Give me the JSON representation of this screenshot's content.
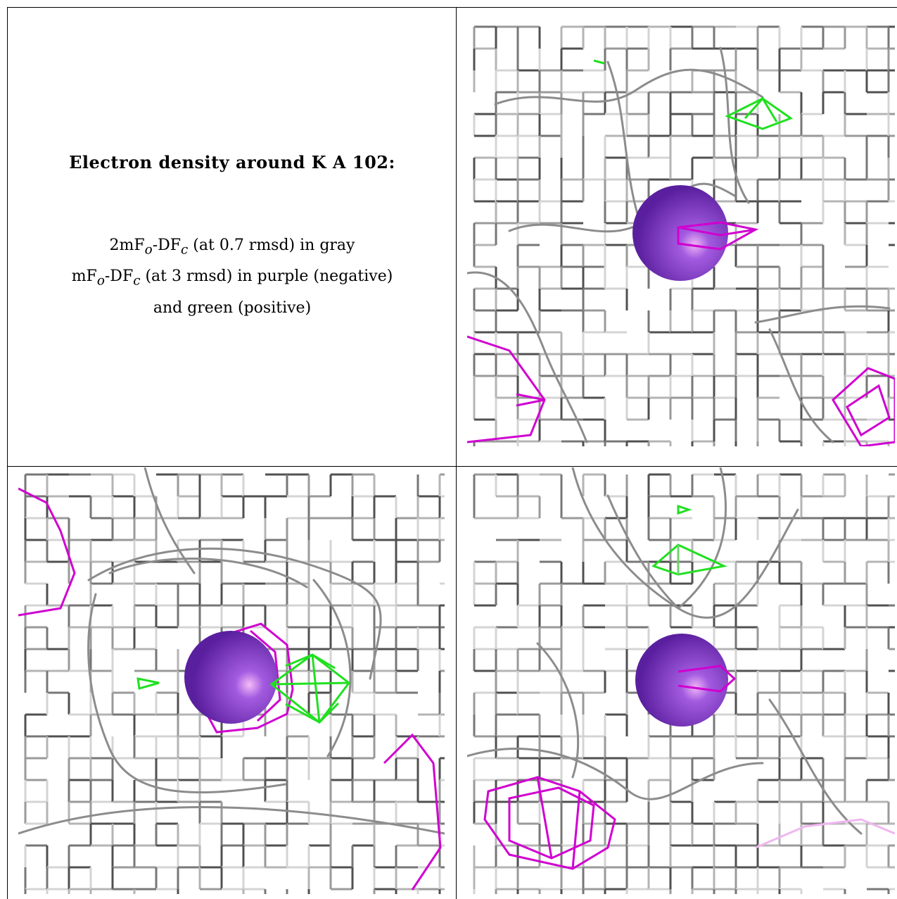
{
  "caption": {
    "title": "Electron density around K A 102:",
    "line1_pre": "2mF",
    "line1_sub1": "o",
    "line1_mid": "-DF",
    "line1_sub2": "c",
    "line1_post": " (at 0.7 rmsd) in gray",
    "line2_pre": "mF",
    "line2_sub1": "o",
    "line2_mid": "-DF",
    "line2_sub2": "c",
    "line2_post": " (at 3 rmsd) in purple (negative)",
    "line3": "and green (positive)"
  },
  "colors": {
    "mesh_gray": "#9a9a9a",
    "mesh_dark": "#505050",
    "mesh_light": "#d4d4d4",
    "negative": "#d000d0",
    "positive": "#20e020",
    "atom": "#8a3fd6"
  },
  "panels": [
    {
      "name": "view-top-right",
      "atom": "K"
    },
    {
      "name": "view-bottom-left",
      "atom": "K"
    },
    {
      "name": "view-bottom-right",
      "atom": "K"
    }
  ]
}
